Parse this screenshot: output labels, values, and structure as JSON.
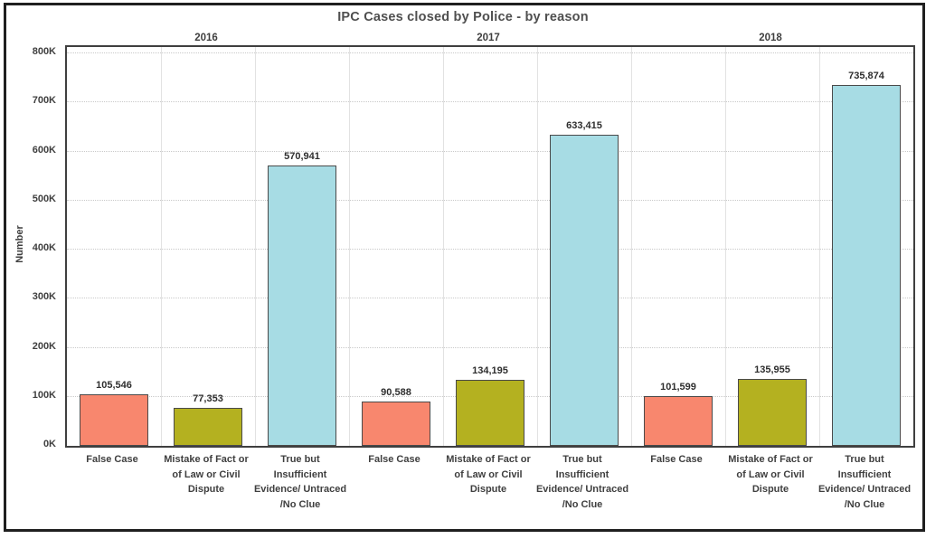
{
  "chart_data": {
    "type": "bar",
    "title": "IPC Cases closed by Police - by reason",
    "ylabel": "Number",
    "ylim": [
      0,
      800000
    ],
    "ytick_interval": 100000,
    "yticks": [
      "0K",
      "100K",
      "200K",
      "300K",
      "400K",
      "500K",
      "600K",
      "700K",
      "800K"
    ],
    "grid": true,
    "legend": "none",
    "categories": [
      {
        "label": "False Case",
        "color": "#F8876E"
      },
      {
        "label": "Mistake of Fact or\nof Law or Civil\nDispute",
        "color": "#B4B120"
      },
      {
        "label": "True but\nInsufficient\nEvidence/ Untraced\n/No Clue",
        "color": "#A7DCE4"
      }
    ],
    "series": [
      {
        "year": "2016",
        "values": [
          105546,
          77353,
          570941
        ],
        "labels": [
          "105,546",
          "77,353",
          "570,941"
        ]
      },
      {
        "year": "2017",
        "values": [
          90588,
          134195,
          633415
        ],
        "labels": [
          "90,588",
          "134,195",
          "633,415"
        ]
      },
      {
        "year": "2018",
        "values": [
          101599,
          135955,
          735874
        ],
        "labels": [
          "101,599",
          "135,955",
          "735,874"
        ]
      }
    ]
  }
}
